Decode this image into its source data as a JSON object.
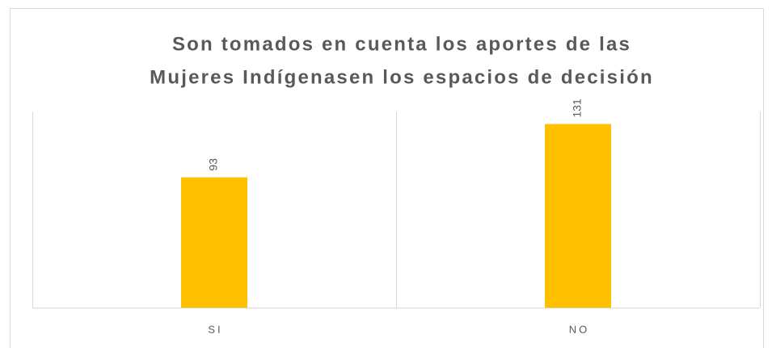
{
  "chart_data": {
    "type": "bar",
    "title": [
      "Son tomados en cuenta los aportes de las",
      "Mujeres Indígenasen los espacios de decisión"
    ],
    "categories": [
      "SI",
      "NO"
    ],
    "values": [
      93,
      131
    ],
    "color": "#ffc000",
    "ylim": [
      0,
      140
    ]
  }
}
